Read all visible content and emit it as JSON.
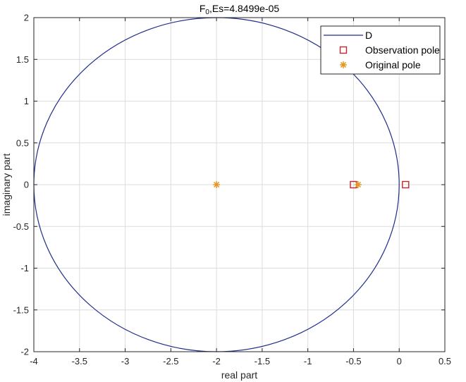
{
  "chart_data": {
    "type": "scatter",
    "title": {
      "main": "F",
      "sub": "0",
      "rest": ",Es=4.8499e-05"
    },
    "xlabel": "real part",
    "ylabel": "imaginary part",
    "xlim": [
      -4,
      0.5
    ],
    "ylim": [
      -2,
      2
    ],
    "xticks": [
      -4,
      -3.5,
      -3,
      -2.5,
      -2,
      -1.5,
      -1,
      -0.5,
      0,
      0.5
    ],
    "xtick_labels": [
      "-4",
      "-3.5",
      "-3",
      "-2.5",
      "-2",
      "-1.5",
      "-1",
      "-0.5",
      "0",
      "0.5"
    ],
    "yticks": [
      -2,
      -1.5,
      -1,
      -0.5,
      0,
      0.5,
      1,
      1.5,
      2
    ],
    "ytick_labels": [
      "-2",
      "-1.5",
      "-1",
      "-0.5",
      "0",
      "0.5",
      "1",
      "1.5",
      "2"
    ],
    "grid": true,
    "legend_position": "top-right",
    "region": {
      "name": "D",
      "center": [
        -2,
        0
      ],
      "radius": 2,
      "color": "#1f2d8c"
    },
    "series": [
      {
        "name": "Observation pole",
        "marker": "square",
        "color": "#c0262d",
        "points": [
          [
            -0.5,
            0
          ],
          [
            0.07,
            0
          ]
        ]
      },
      {
        "name": "Original pole",
        "marker": "asterisk",
        "color": "#e69520",
        "points": [
          [
            -2,
            0
          ],
          [
            -0.45,
            0
          ]
        ]
      }
    ]
  }
}
